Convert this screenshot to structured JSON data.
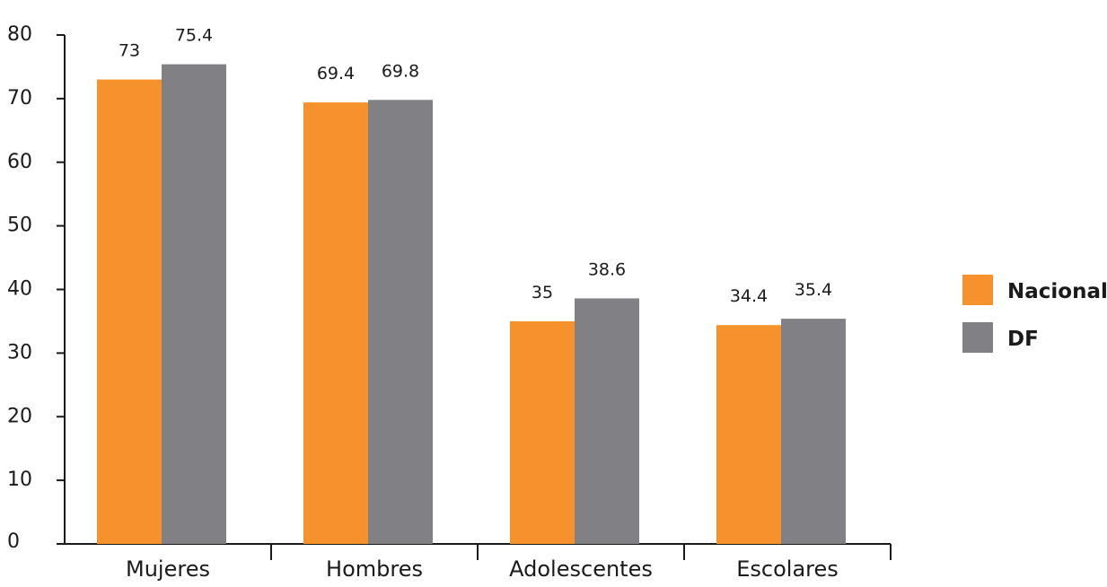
{
  "chart_data": {
    "type": "bar",
    "categories": [
      "Mujeres",
      "Hombres",
      "Adolescentes",
      "Escolares"
    ],
    "series": [
      {
        "name": "Nacional",
        "values": [
          73,
          69.4,
          35,
          34.4
        ],
        "color": "#F5922B"
      },
      {
        "name": "DF",
        "values": [
          75.4,
          69.8,
          38.6,
          35.4
        ],
        "color": "#818084"
      }
    ],
    "ylim": [
      0,
      80
    ],
    "yticks": [
      0,
      10,
      20,
      30,
      40,
      50,
      60,
      70,
      80
    ],
    "grid": false,
    "legend_position": "right"
  }
}
